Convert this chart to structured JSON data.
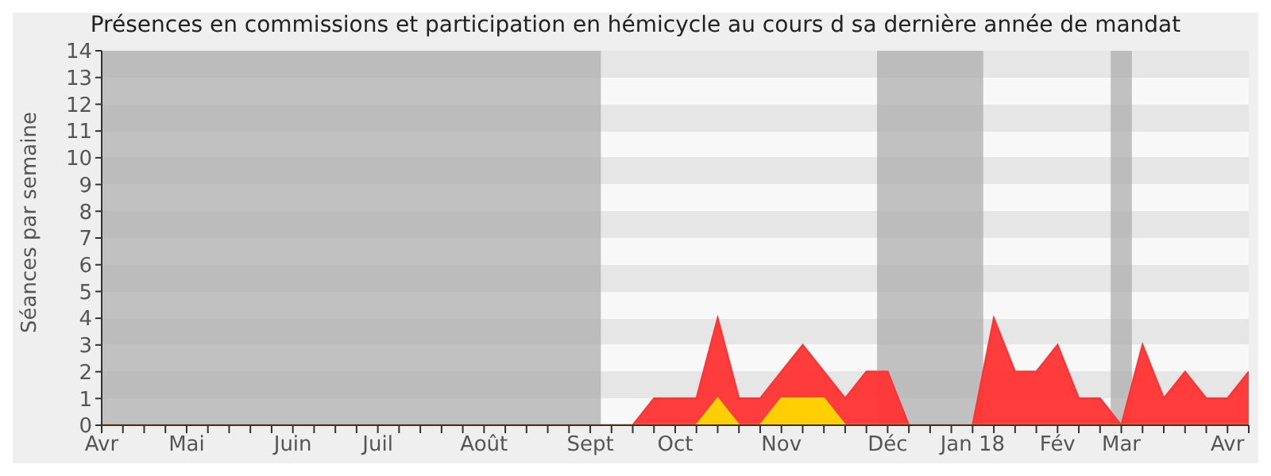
{
  "chart_data": {
    "type": "area",
    "title": "Présences en commissions et participation en hémicycle au cours d sa dernière année de mandat",
    "ylabel": "Séances par semaine",
    "categories": [
      "Avr",
      null,
      null,
      null,
      "Mai",
      null,
      null,
      null,
      null,
      "Juin",
      null,
      null,
      null,
      "Juil",
      null,
      null,
      null,
      null,
      "Août",
      null,
      null,
      null,
      null,
      "Sept",
      null,
      null,
      null,
      "Oct",
      null,
      null,
      null,
      null,
      "Nov",
      null,
      null,
      null,
      null,
      "Déc",
      null,
      null,
      null,
      "Jan 18",
      null,
      null,
      null,
      "Fév",
      null,
      null,
      "Mar",
      null,
      null,
      null,
      null,
      "Avr",
      null
    ],
    "series": [
      {
        "color": "#ff3333",
        "values": [
          0,
          0,
          0,
          0,
          0,
          0,
          0,
          0,
          0,
          0,
          0,
          0,
          0,
          0,
          0,
          0,
          0,
          0,
          0,
          0,
          0,
          0,
          0,
          0,
          0,
          0,
          1,
          1,
          1,
          4,
          1,
          1,
          2,
          3,
          2,
          1,
          2,
          2,
          0,
          0,
          0,
          0,
          4,
          2,
          2,
          3,
          1,
          1,
          0,
          3,
          1,
          2,
          1,
          1,
          2
        ]
      },
      {
        "color": "#ffd700",
        "values": [
          0,
          0,
          0,
          0,
          0,
          0,
          0,
          0,
          0,
          0,
          0,
          0,
          0,
          0,
          0,
          0,
          0,
          0,
          0,
          0,
          0,
          0,
          0,
          0,
          0,
          0,
          0,
          0,
          0,
          1,
          0,
          0,
          1,
          1,
          1,
          0,
          0,
          0,
          0,
          0,
          0,
          0,
          0,
          0,
          0,
          0,
          0,
          0,
          0,
          0,
          0,
          0,
          0,
          0,
          0
        ]
      }
    ],
    "ylim": [
      0,
      14
    ],
    "yticks": [
      0,
      1,
      2,
      3,
      4,
      5,
      6,
      7,
      8,
      9,
      10,
      11,
      12,
      13,
      14
    ],
    "bands": [
      {
        "axis": "x",
        "from": "Avr",
        "to": "Sept",
        "color": "#aaaaaa"
      },
      {
        "axis": "x",
        "from": "Déc",
        "to": "Jan 18",
        "color": "#aaaaaa"
      },
      {
        "axis": "x",
        "from": "Mar",
        "to": "Mar",
        "color": "#aaaaaa"
      }
    ]
  }
}
